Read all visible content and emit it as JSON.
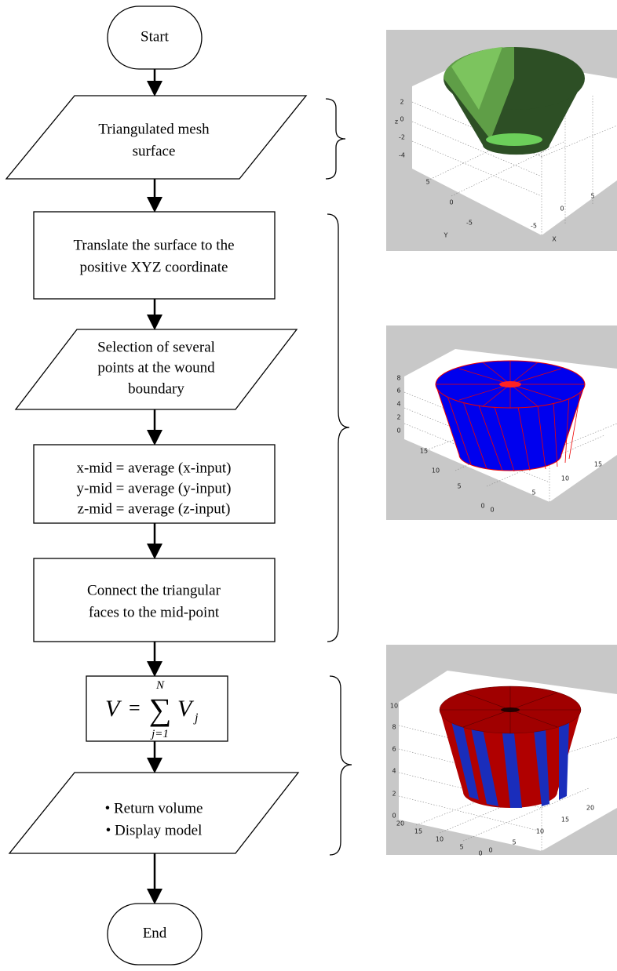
{
  "flowchart": {
    "start": "Start",
    "input": [
      "Triangulated mesh",
      "surface"
    ],
    "translate": [
      "Translate the surface to the",
      "positive XYZ coordinate"
    ],
    "select": [
      "Selection of several",
      "points at the wound",
      "boundary"
    ],
    "midpoint": [
      "x-mid = average (x-input)",
      "y-mid = average (y-input)",
      "z-mid = average (z-input)"
    ],
    "connect": [
      "Connect the triangular",
      "faces to the mid-point"
    ],
    "formula": {
      "lhs": "V",
      "eq": "=",
      "sum": "∑",
      "upper": "N",
      "lower": "j=1",
      "term": "V",
      "sub": "j"
    },
    "output": [
      "• Return volume",
      "• Display model"
    ],
    "end": "End"
  },
  "panels": [
    {
      "zticks": [
        "2",
        "0",
        "-2",
        "-4"
      ],
      "zlabel": "z",
      "yticks": [
        "5",
        "0",
        "-5"
      ],
      "ylabel": "Y",
      "xticks": [
        "-5",
        "0",
        "5"
      ],
      "xlabel": "X"
    },
    {
      "zticks": [
        "8",
        "6",
        "4",
        "2",
        "0"
      ],
      "yticks": [
        "15",
        "10",
        "5",
        "0"
      ],
      "xticks": [
        "0",
        "5",
        "10",
        "15"
      ]
    },
    {
      "zticks": [
        "10",
        "8",
        "6",
        "4",
        "2",
        "0"
      ],
      "yticks": [
        "20",
        "15",
        "10",
        "5",
        "0"
      ],
      "xticks": [
        "0",
        "5",
        "10",
        "15",
        "20"
      ]
    }
  ]
}
